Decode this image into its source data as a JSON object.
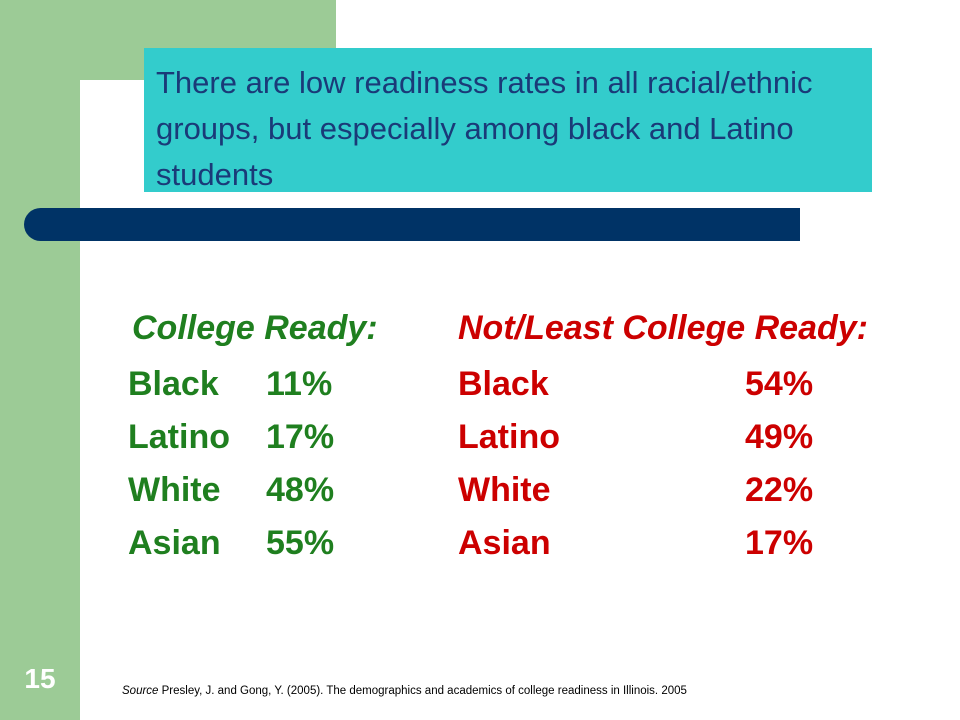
{
  "title": "There are low readiness rates in all racial/ethnic groups, but especially among black and Latino students",
  "college_ready": {
    "header": "College Ready:",
    "rows": [
      {
        "group": "Black",
        "percent": "11%"
      },
      {
        "group": "Latino",
        "percent": "17%"
      },
      {
        "group": "White",
        "percent": "48%"
      },
      {
        "group": "Asian",
        "percent": "55%"
      }
    ]
  },
  "not_ready": {
    "header": "Not/Least College Ready:",
    "rows": [
      {
        "group": "Black",
        "percent": "54%"
      },
      {
        "group": "Latino",
        "percent": "49%"
      },
      {
        "group": "White",
        "percent": "22%"
      },
      {
        "group": "Asian",
        "percent": "17%"
      }
    ]
  },
  "slide_number": "15",
  "source": {
    "label": "Source",
    "text": " Presley, J. and Gong, Y. (2005). The  demographics and academics of college readiness in Illinois. 2005"
  },
  "colors": {
    "accent_green": "#9ccb96",
    "title_box": "#33cccc",
    "title_text": "#1a3a78",
    "navy_bar": "#003366",
    "ready_text": "#1f7f1f",
    "not_ready_text": "#cc0000"
  }
}
